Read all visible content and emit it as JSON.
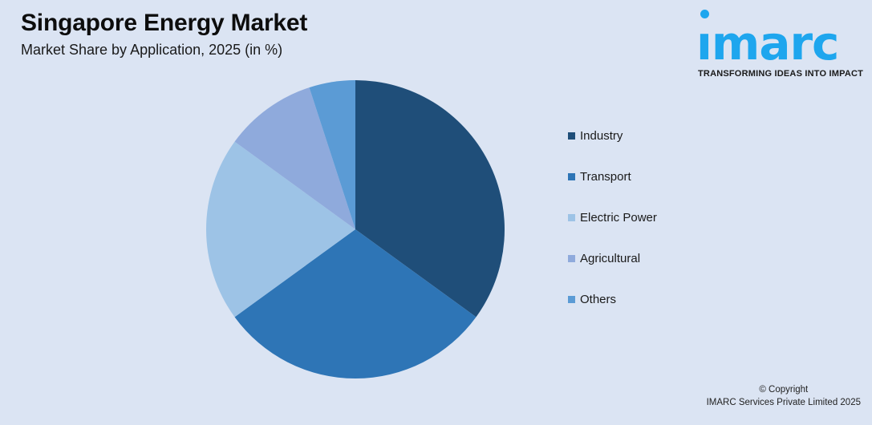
{
  "header": {
    "title": "Singapore Energy Market",
    "subtitle": "Market Share by Application, 2025 (in %)"
  },
  "logo": {
    "wordmark": "ımarc",
    "tagline": "TRANSFORMING IDEAS INTO IMPACT",
    "color": "#1ea6ee"
  },
  "footer": {
    "copyright_line1": "© Copyright",
    "copyright_line2": "IMARC Services Private Limited 2025"
  },
  "chart_data": {
    "type": "pie",
    "title": "Singapore Energy Market",
    "subtitle": "Market Share by Application, 2025 (in %)",
    "categories": [
      "Industry",
      "Transport",
      "Electric Power",
      "Agricultural",
      "Others"
    ],
    "values": [
      35,
      30,
      20,
      10,
      5
    ],
    "colors": [
      "#1f4e79",
      "#2e75b6",
      "#9dc3e6",
      "#8faadc",
      "#5b9bd5"
    ],
    "start_angle": "12 o'clock, clockwise",
    "legend_position": "right",
    "data_labels": false
  },
  "legend": {
    "items": [
      {
        "label": "Industry",
        "color": "#1f4e79"
      },
      {
        "label": "Transport",
        "color": "#2e75b6"
      },
      {
        "label": "Electric Power",
        "color": "#9dc3e6"
      },
      {
        "label": "Agricultural",
        "color": "#8faadc"
      },
      {
        "label": "Others",
        "color": "#5b9bd5"
      }
    ]
  }
}
